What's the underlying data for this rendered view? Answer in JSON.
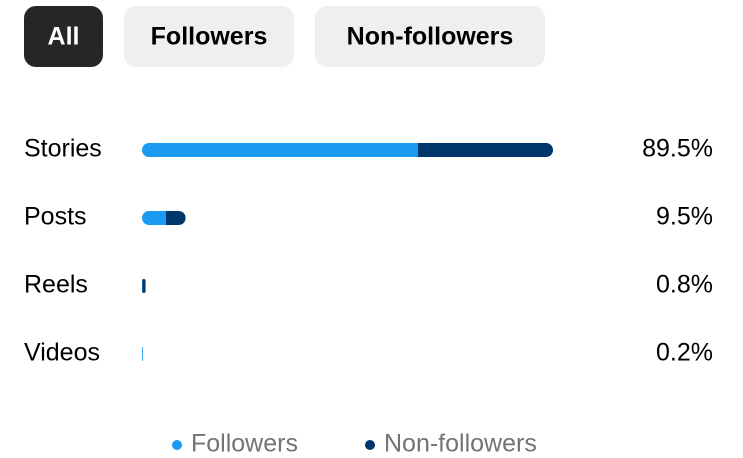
{
  "tabs": [
    "All",
    "Followers",
    "Non-followers"
  ],
  "selected_tab": "All",
  "chart_data": {
    "type": "stacked-bar",
    "categories": [
      "Stories",
      "Posts",
      "Reels",
      "Videos"
    ],
    "series": [
      {
        "name": "Followers",
        "color": "#1a9af0",
        "values": [
          60.1,
          5.2,
          0.1,
          0.2
        ]
      },
      {
        "name": "Non-followers",
        "color": "#00376b",
        "values": [
          29.4,
          4.3,
          0.7,
          0
        ]
      }
    ],
    "totals": [
      89.5,
      9.5,
      0.8,
      0.2
    ],
    "total_labels": [
      "89.5%",
      "9.5%",
      "0.8%",
      "0.2%"
    ]
  }
}
